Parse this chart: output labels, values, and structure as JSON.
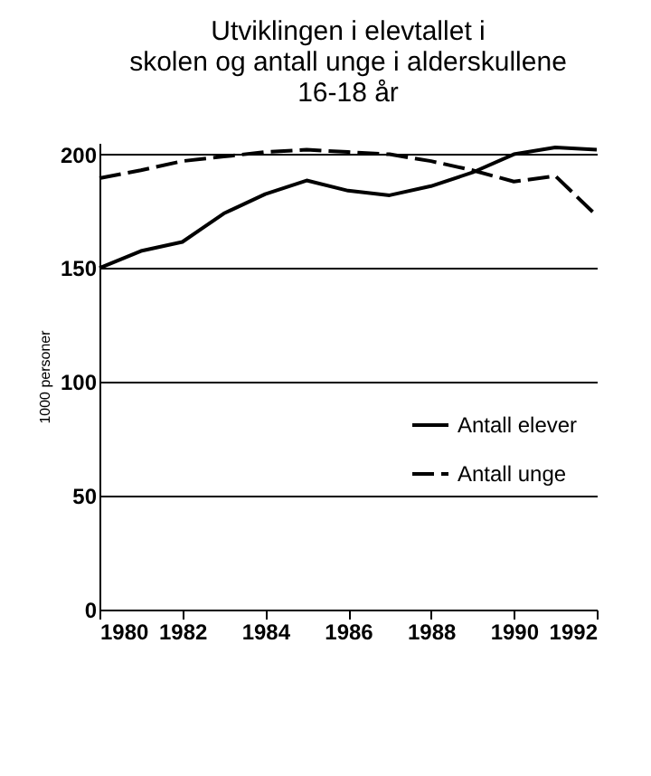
{
  "chart_data": {
    "type": "line",
    "title": [
      "Utviklingen i elevtallet i",
      "skolen og antall unge i alderskullene",
      "16-18 år"
    ],
    "ylabel": "1000 personer",
    "x": [
      1980,
      1981,
      1982,
      1983,
      1984,
      1985,
      1986,
      1987,
      1988,
      1989,
      1990,
      1991,
      1992
    ],
    "series": [
      {
        "name": "Antall elever",
        "color": "#000000",
        "line_style": "solid",
        "values": [
          150,
          157.5,
          161.5,
          174,
          182.5,
          188.5,
          184,
          182,
          186,
          192,
          200,
          203,
          202
        ]
      },
      {
        "name": "Antall unge",
        "color": "#000000",
        "line_style": "dashed",
        "values": [
          189.5,
          193,
          197,
          199,
          201,
          202,
          201,
          200,
          197,
          193,
          188,
          190.5,
          173
        ]
      }
    ],
    "xlim": [
      1980,
      1992
    ],
    "xticks": [
      1980,
      1982,
      1984,
      1986,
      1988,
      1990,
      1992
    ],
    "ylim": [
      0,
      205
    ],
    "yticks": [
      0,
      50,
      100,
      150,
      200
    ],
    "grid": "y",
    "legend": "right"
  }
}
